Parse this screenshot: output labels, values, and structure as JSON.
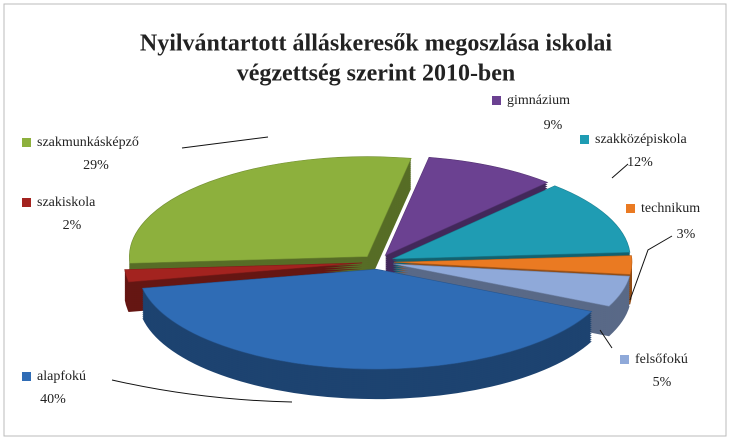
{
  "chart_data": {
    "type": "pie3d",
    "title": [
      "Nyilvántartott álláskeresők megoszlása iskolai",
      "végzettség szerint 2010-ben"
    ],
    "categories": [
      "alapfokú",
      "szakiskola",
      "szakmunkásképző",
      "gimnázium",
      "szakközépiskola",
      "technikum",
      "felsőfokú"
    ],
    "values": [
      40,
      2,
      29,
      9,
      12,
      3,
      5
    ],
    "value_labels": [
      "40%",
      "2%",
      "29%",
      "9%",
      "12%",
      "3%",
      "5%"
    ],
    "colors": [
      "#2f6cb5",
      "#a3231f",
      "#8db03d",
      "#6b4191",
      "#1f9cb3",
      "#ea7a22",
      "#8fa9d9"
    ]
  }
}
